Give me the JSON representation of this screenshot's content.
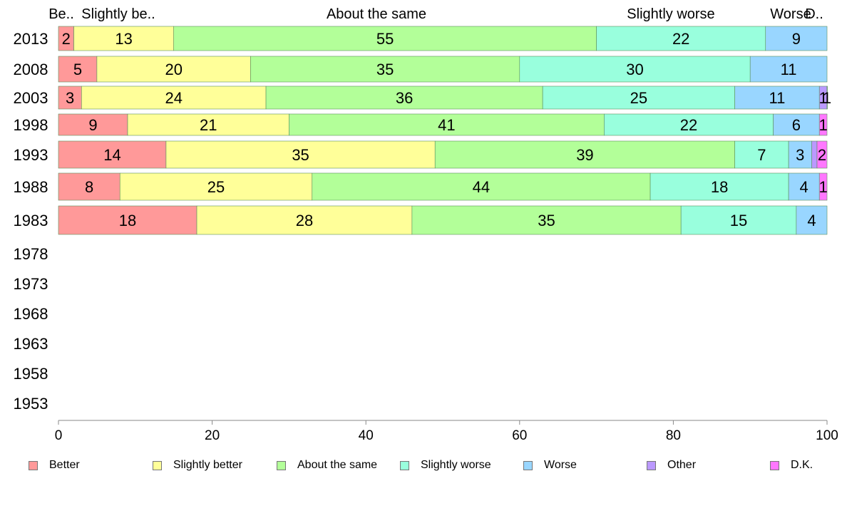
{
  "chart_data": {
    "type": "bar",
    "orientation": "horizontal-stacked-percent",
    "title": "",
    "xlabel": "",
    "ylabel": "",
    "xlim": [
      0,
      100
    ],
    "x_ticks": [
      0,
      20,
      40,
      60,
      80,
      100
    ],
    "grid": false,
    "legend_position": "bottom",
    "top_labels": [
      "Be..",
      "Slightly be..",
      "About the same",
      "Slightly worse",
      "Worse",
      "D.."
    ],
    "categories": [
      "2013",
      "2008",
      "2003",
      "1998",
      "1993",
      "1988",
      "1983",
      "1978",
      "1973",
      "1968",
      "1963",
      "1958",
      "1953"
    ],
    "series": [
      {
        "name": "Better",
        "color": "#ff9999",
        "values": [
          2,
          5,
          3,
          9,
          14,
          8,
          18,
          null,
          null,
          null,
          null,
          null,
          null
        ],
        "labels": [
          "2",
          "5",
          "3",
          "9",
          "14",
          "8",
          "18",
          "",
          "",
          "",
          "",
          "",
          ""
        ]
      },
      {
        "name": "Slightly better",
        "color": "#ffff99",
        "values": [
          13,
          20,
          24,
          21,
          35,
          25,
          28,
          null,
          null,
          null,
          null,
          null,
          null
        ],
        "labels": [
          "13",
          "20",
          "24",
          "21",
          "35",
          "25",
          "28",
          "",
          "",
          "",
          "",
          "",
          ""
        ]
      },
      {
        "name": "About the same",
        "color": "#b3ff99",
        "values": [
          55,
          35,
          36,
          41,
          39,
          44,
          35,
          null,
          null,
          null,
          null,
          null,
          null
        ],
        "labels": [
          "55",
          "35",
          "36",
          "41",
          "39",
          "44",
          "35",
          "",
          "",
          "",
          "",
          "",
          ""
        ]
      },
      {
        "name": "Slightly worse",
        "color": "#99ffdd",
        "values": [
          22,
          30,
          25,
          22,
          7,
          18,
          15,
          null,
          null,
          null,
          null,
          null,
          null
        ],
        "labels": [
          "22",
          "30",
          "25",
          "22",
          "7",
          "18",
          "15",
          "",
          "",
          "",
          "",
          "",
          ""
        ]
      },
      {
        "name": "Worse",
        "color": "#99d6ff",
        "values": [
          9,
          11,
          11,
          6,
          3,
          4,
          4,
          null,
          null,
          null,
          null,
          null,
          null
        ],
        "labels": [
          "9",
          "11",
          "11",
          "6",
          "3",
          "4",
          "4",
          "",
          "",
          "",
          "",
          "",
          ""
        ]
      },
      {
        "name": "Other",
        "color": "#bb99ff",
        "values": [
          0,
          0,
          1,
          0,
          0.7,
          0,
          0,
          null,
          null,
          null,
          null,
          null,
          null
        ],
        "labels": [
          "",
          "",
          "1",
          "",
          "",
          "",
          "",
          "",
          "",
          "",
          "",
          "",
          ""
        ]
      },
      {
        "name": "D.K.",
        "color": "#ff77ff",
        "values": [
          0,
          0,
          1,
          1,
          2,
          1,
          0,
          null,
          null,
          null,
          null,
          null,
          null
        ],
        "labels": [
          "",
          "",
          "1",
          "1",
          "2",
          "1",
          "",
          "",
          "",
          "",
          "",
          "",
          ""
        ]
      }
    ]
  }
}
